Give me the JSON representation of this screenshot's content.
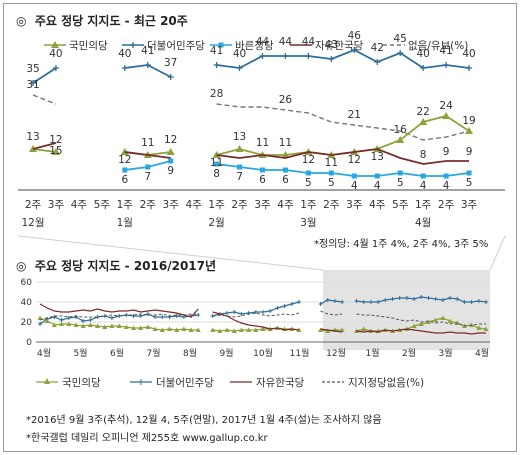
{
  "header1": {
    "icon": "◎",
    "text": "주요 정당 지지도 - 최근 20주"
  },
  "header2": {
    "icon": "◎",
    "text": "주요 정당 지지도 - 2016/2017년"
  },
  "note1": "*정의당: 4월 1주 4%, 2주 4%, 3주 5%",
  "footnote1": "*2016년 9월 3주(추석), 12월 4, 5주(연말), 2017년 1월 4주(설)는 조사하지 않음",
  "footnote2": "*한국갤럽 데일리 오피니언 제255호 www.gallup.co.kr",
  "chart_data": [
    {
      "type": "line",
      "title": "주요 정당 지지도 - 최근 20주",
      "x": [
        "2주",
        "3주",
        "4주",
        "5주",
        "1주",
        "2주",
        "3주",
        "4주",
        "1주",
        "2주",
        "3주",
        "4주",
        "1주",
        "2주",
        "3주",
        "4주",
        "5주",
        "1주",
        "2주",
        "3주"
      ],
      "month_labels": [
        {
          "label": "12월",
          "index": 0
        },
        {
          "label": "1월",
          "index": 4
        },
        {
          "label": "2월",
          "index": 8
        },
        {
          "label": "3월",
          "index": 12
        },
        {
          "label": "4월",
          "index": 17
        }
      ],
      "series": [
        {
          "name": "더불어민주당",
          "color": "#2f6e98",
          "marker": "plus",
          "values": [
            35,
            40,
            null,
            null,
            40,
            41,
            37,
            null,
            41,
            40,
            44,
            44,
            44,
            43,
            46,
            42,
            45,
            40,
            41,
            40
          ]
        },
        {
          "name": "없음/유보(%)",
          "color": "#777777",
          "marker": "none",
          "dashed": true,
          "values": [
            31,
            28,
            null,
            null,
            null,
            null,
            null,
            null,
            28,
            27,
            27,
            26,
            25,
            22,
            21,
            20,
            19,
            16,
            17,
            19
          ]
        },
        {
          "name": "국민의당",
          "color": "#8ba33a",
          "marker": "triangle",
          "values": [
            13,
            12,
            null,
            null,
            12,
            11,
            12,
            null,
            11,
            13,
            11,
            11,
            12,
            11,
            12,
            13,
            16,
            22,
            24,
            19
          ]
        },
        {
          "name": "자유한국당",
          "color": "#7a2b2b",
          "marker": "none",
          "values": [
            13,
            15,
            null,
            null,
            12,
            11,
            10,
            null,
            11,
            10,
            11,
            10,
            12,
            11,
            12,
            13,
            10,
            8,
            9,
            9
          ]
        },
        {
          "name": "바른정당",
          "color": "#29a8dd",
          "marker": "square",
          "values": [
            null,
            null,
            null,
            null,
            6,
            7,
            9,
            null,
            8,
            7,
            6,
            6,
            5,
            5,
            4,
            4,
            5,
            4,
            4,
            5
          ]
        }
      ],
      "labels": [
        {
          "series": 0,
          "points": [
            [
              0,
              "35"
            ],
            [
              1,
              "40"
            ],
            [
              4,
              "40"
            ],
            [
              5,
              "41"
            ],
            [
              6,
              "37"
            ],
            [
              8,
              "41"
            ],
            [
              9,
              "40"
            ],
            [
              10,
              "44"
            ],
            [
              11,
              "44"
            ],
            [
              12,
              "44"
            ],
            [
              13,
              "43"
            ],
            [
              14,
              "46"
            ],
            [
              15,
              "42"
            ],
            [
              16,
              "45"
            ],
            [
              17,
              "40"
            ],
            [
              18,
              "41"
            ],
            [
              19,
              "40"
            ]
          ]
        },
        {
          "series": 1,
          "points": [
            [
              0,
              "31"
            ],
            [
              8,
              "28"
            ],
            [
              11,
              "26"
            ],
            [
              14,
              "21"
            ]
          ]
        },
        {
          "series": 2,
          "points": [
            [
              0,
              "13"
            ],
            [
              1,
              "12"
            ],
            [
              5,
              "11"
            ],
            [
              6,
              "12"
            ],
            [
              9,
              "13"
            ],
            [
              10,
              "11"
            ],
            [
              11,
              "11"
            ],
            [
              16,
              "16"
            ],
            [
              17,
              "22"
            ],
            [
              18,
              "24"
            ],
            [
              19,
              "19"
            ]
          ]
        },
        {
          "series": 3,
          "points": [
            [
              1,
              "15"
            ],
            [
              4,
              "12"
            ],
            [
              8,
              "11"
            ],
            [
              12,
              "12"
            ],
            [
              13,
              "11"
            ],
            [
              14,
              "12"
            ],
            [
              15,
              "13"
            ],
            [
              17,
              "8"
            ],
            [
              18,
              "9"
            ],
            [
              19,
              "9"
            ]
          ]
        },
        {
          "series": 4,
          "points": [
            [
              4,
              "6"
            ],
            [
              5,
              "7"
            ],
            [
              6,
              "9"
            ],
            [
              8,
              "8"
            ],
            [
              9,
              "7"
            ],
            [
              10,
              "6"
            ],
            [
              11,
              "6"
            ],
            [
              12,
              "5"
            ],
            [
              13,
              "5"
            ],
            [
              14,
              "4"
            ],
            [
              15,
              "4"
            ],
            [
              16,
              "5"
            ],
            [
              17,
              "4"
            ],
            [
              18,
              "4"
            ],
            [
              19,
              "5"
            ]
          ]
        }
      ],
      "ylim": [
        0,
        50
      ],
      "grid": false,
      "legend_position": "top"
    },
    {
      "type": "line",
      "title": "주요 정당 지지도 - 2016/2017년",
      "months": [
        "4월",
        "5월",
        "6월",
        "7월",
        "8월",
        "9월",
        "10월",
        "11월",
        "12월",
        "1월",
        "2월",
        "3월",
        "4월"
      ],
      "yticks": [
        0,
        20,
        40,
        60
      ],
      "ylim": [
        0,
        60
      ],
      "grid": true,
      "legend_position": "bottom",
      "series": [
        {
          "name": "더불어민주당",
          "color": "#2f6e98",
          "marker": "plus",
          "values": [
            18,
            23,
            25,
            22,
            24,
            25,
            21,
            22,
            25,
            26,
            24,
            26,
            27,
            26,
            26,
            28,
            25,
            25,
            25,
            26,
            25,
            26,
            27,
            null,
            26,
            28,
            29,
            30,
            28,
            29,
            30,
            30,
            31,
            34,
            36,
            38,
            40,
            null,
            null,
            38,
            42,
            41,
            40,
            null,
            41,
            40,
            40,
            40,
            42,
            43,
            44,
            44,
            43,
            45,
            44,
            43,
            42,
            44,
            43,
            40,
            40,
            41,
            40
          ]
        },
        {
          "name": "국민의당",
          "color": "#8ba33a",
          "marker": "triangle",
          "values": [
            24,
            21,
            17,
            18,
            18,
            17,
            16,
            17,
            16,
            15,
            16,
            16,
            15,
            14,
            14,
            15,
            13,
            12,
            13,
            12,
            13,
            12,
            12,
            null,
            12,
            11,
            12,
            11,
            12,
            12,
            12,
            13,
            13,
            14,
            13,
            13,
            12,
            null,
            null,
            12,
            11,
            12,
            12,
            null,
            11,
            13,
            11,
            11,
            12,
            11,
            12,
            13,
            16,
            18,
            20,
            22,
            24,
            21,
            19,
            16,
            17,
            14,
            13
          ]
        },
        {
          "name": "자유한국당",
          "color": "#7a2b2b",
          "marker": "none",
          "values": [
            38,
            34,
            31,
            30,
            30,
            31,
            32,
            31,
            33,
            31,
            30,
            31,
            31,
            32,
            30,
            31,
            32,
            31,
            30,
            29,
            27,
            25,
            33,
            null,
            30,
            28,
            26,
            22,
            19,
            17,
            16,
            15,
            13,
            14,
            12,
            13,
            12,
            null,
            null,
            13,
            12,
            11,
            10,
            null,
            11,
            10,
            11,
            10,
            12,
            11,
            12,
            13,
            12,
            11,
            10,
            9,
            9,
            10,
            9,
            9,
            8,
            9,
            9
          ]
        },
        {
          "name": "지지정당없음(%)",
          "color": "#555555",
          "marker": "none",
          "dashed": true,
          "values": [
            22,
            24,
            26,
            26,
            25,
            26,
            25,
            25,
            25,
            26,
            27,
            26,
            27,
            27,
            28,
            27,
            27,
            28,
            26,
            27,
            27,
            28,
            28,
            null,
            26,
            27,
            26,
            25,
            26,
            28,
            29,
            27,
            26,
            27,
            28,
            27,
            29,
            null,
            null,
            31,
            28,
            27,
            28,
            null,
            28,
            27,
            27,
            26,
            25,
            24,
            22,
            21,
            22,
            20,
            21,
            19,
            20,
            18,
            19,
            16,
            17,
            18,
            18
          ]
        }
      ],
      "shaded": true
    }
  ]
}
